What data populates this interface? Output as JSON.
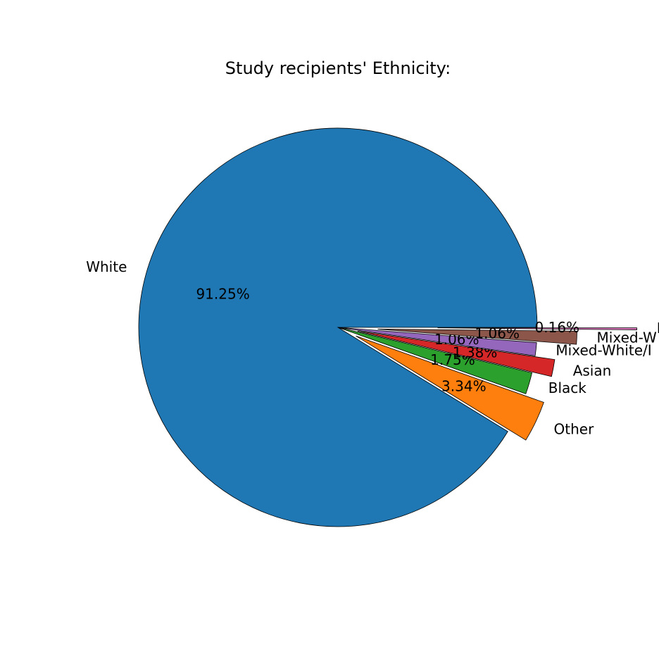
{
  "chart_data": {
    "type": "pie",
    "title": "Study recipients' Ethnicity:",
    "categories": [
      "White",
      "Other",
      "Black",
      "Asian",
      "Mixed-White/I",
      "Mixed-W",
      "I"
    ],
    "values": [
      91.25,
      3.34,
      1.75,
      1.38,
      1.06,
      1.06,
      0.16
    ],
    "value_labels": [
      "91.25%",
      "3.34%",
      "1.75%",
      "1.38%",
      "1.06%",
      "1.06%",
      "0.16%"
    ],
    "colors": [
      "#1f77b4",
      "#ff7f0e",
      "#2ca02c",
      "#d62728",
      "#9467bd",
      "#8c564b",
      "#e377c2"
    ]
  }
}
